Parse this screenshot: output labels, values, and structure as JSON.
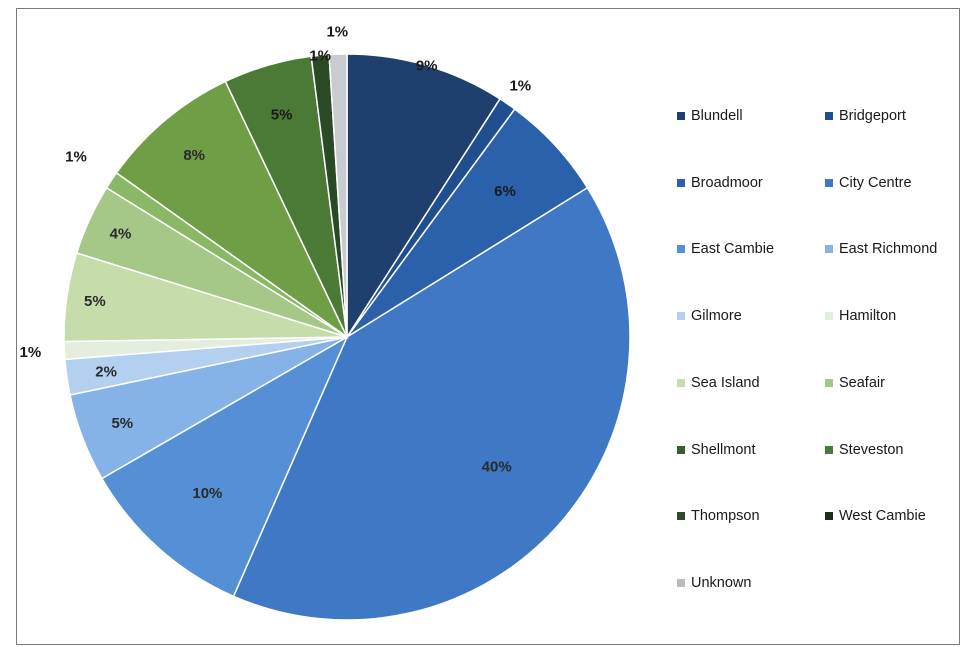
{
  "chart_data": {
    "type": "pie",
    "legend_position": "right",
    "slices": [
      {
        "name": "Blundell",
        "percent": 9,
        "label": "9%",
        "color": "#1f3f6e"
      },
      {
        "name": "Bridgeport",
        "percent": 1,
        "label": "1%",
        "color": "#1f4f8f"
      },
      {
        "name": "Broadmoor",
        "percent": 6,
        "label": "6%",
        "color": "#2b61aa"
      },
      {
        "name": "City Centre",
        "percent": 40,
        "label": "40%",
        "color": "#3f78c4"
      },
      {
        "name": "East Cambie",
        "percent": 10,
        "label": "10%",
        "color": "#5590d6"
      },
      {
        "name": "East Richmond",
        "percent": 5,
        "label": "5%",
        "color": "#85b3e8"
      },
      {
        "name": "Gilmore",
        "percent": 2,
        "label": "2%",
        "color": "#b3d0f0"
      },
      {
        "name": "Hamilton",
        "percent": 1,
        "label": "1%",
        "color": "#e4eede"
      },
      {
        "name": "Sea Island",
        "percent": 5,
        "label": "5%",
        "color": "#c6dcaa"
      },
      {
        "name": "Seafair",
        "percent": 4,
        "label": "4%",
        "color": "#a5c787"
      },
      {
        "name": "Shellmont",
        "percent": 1,
        "label": "1%",
        "color": "#8bb867"
      },
      {
        "name": "Steveston",
        "percent": 8,
        "label": "8%",
        "color": "#6f9e47"
      },
      {
        "name": "Thompson",
        "percent": 5,
        "label": "5%",
        "color": "#4a7a35"
      },
      {
        "name": "West Cambie",
        "percent": 1,
        "label": "1%",
        "color": "#2a4a26"
      },
      {
        "name": "Unknown",
        "percent": 1,
        "label": "1%",
        "color": "#c8ccd0"
      }
    ]
  },
  "legend": {
    "items": [
      {
        "label": "Blundell",
        "color": "#1f3f6e"
      },
      {
        "label": "Bridgeport",
        "color": "#1f4f8f"
      },
      {
        "label": "Broadmoor",
        "color": "#2b61aa"
      },
      {
        "label": "City Centre",
        "color": "#3f78c4"
      },
      {
        "label": "East Cambie",
        "color": "#5590d6"
      },
      {
        "label": "East Richmond",
        "color": "#85b3e8"
      },
      {
        "label": "Gilmore",
        "color": "#b3d0f0"
      },
      {
        "label": "Hamilton",
        "color": "#e4eede"
      },
      {
        "label": "Sea Island",
        "color": "#c6dcaa"
      },
      {
        "label": "Seafair",
        "color": "#a5c787"
      },
      {
        "label": "Shellmont",
        "color": "#3c5c30"
      },
      {
        "label": "Steveston",
        "color": "#4a7a35"
      },
      {
        "label": "Thompson",
        "color": "#2e4a28"
      },
      {
        "label": "West Cambie",
        "color": "#1e2e1c"
      },
      {
        "label": "Unknown",
        "color": "#b8bcc0"
      }
    ]
  }
}
